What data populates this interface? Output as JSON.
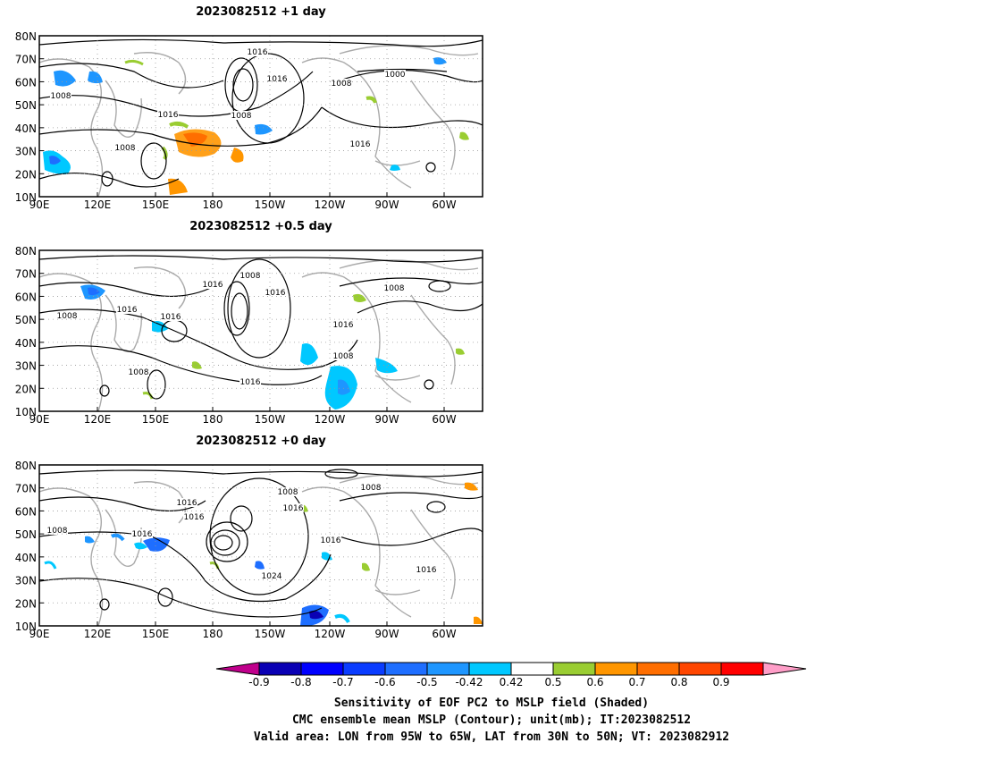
{
  "panels": [
    {
      "title": "2023082512  +1 day",
      "contour_labels": [
        "1016",
        "1016",
        "1000",
        "1008",
        "1008",
        "1008",
        "1016",
        "1008",
        "1016"
      ]
    },
    {
      "title": "2023082512  +0.5 day",
      "contour_labels": [
        "1008",
        "1016",
        "1016",
        "1008",
        "1008",
        "1016",
        "1016",
        "1016",
        "1008",
        "1008",
        "1016"
      ]
    },
    {
      "title": "2023082512  +0 day",
      "contour_labels": [
        "1008",
        "1016",
        "1016",
        "1008",
        "1008",
        "1016",
        "1016",
        "1016",
        "1024",
        "1016"
      ]
    }
  ],
  "lat_labels": [
    "80N",
    "70N",
    "60N",
    "50N",
    "40N",
    "30N",
    "20N",
    "10N"
  ],
  "lon_labels": [
    "90E",
    "120E",
    "150E",
    "180",
    "150W",
    "120W",
    "90W",
    "60W"
  ],
  "colorbar": {
    "ticks": [
      "-0.9",
      "-0.8",
      "-0.7",
      "-0.6",
      "-0.5",
      "-0.42",
      "0.42",
      "0.5",
      "0.6",
      "0.7",
      "0.8",
      "0.9"
    ],
    "colors": [
      "#c0008c",
      "#0a00b4",
      "#0000ff",
      "#0a3cff",
      "#1e6eff",
      "#1e96ff",
      "#00c8ff",
      "#ffffff",
      "#9acd32",
      "#ff9600",
      "#ff6e00",
      "#ff4600",
      "#ff0000",
      "#ff9ec8"
    ]
  },
  "captions": {
    "line1": "Sensitivity of EOF PC2 to MSLP field (Shaded)",
    "line2": "CMC ensemble mean MSLP (Contour); unit(mb); IT:2023082512",
    "line3": "Valid area: LON from 95W to 65W, LAT from 30N to 50N; VT: 2023082912"
  }
}
